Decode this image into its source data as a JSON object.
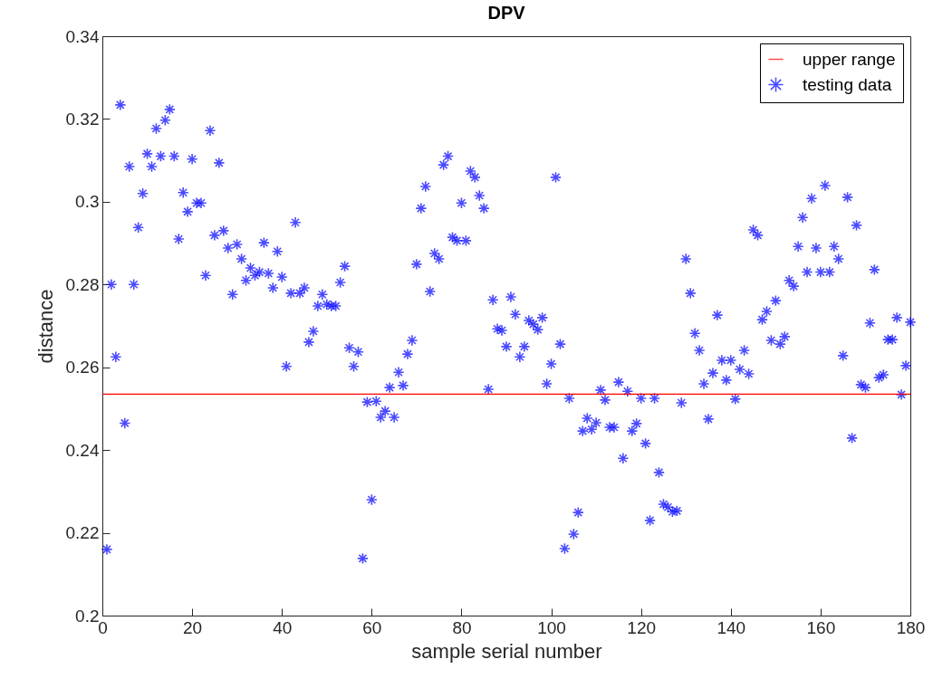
{
  "chart_data": {
    "type": "scatter",
    "title": "DPV",
    "xlabel": "sample serial number",
    "ylabel": "distance",
    "xlim": [
      0,
      180
    ],
    "xticks": [
      0,
      20,
      40,
      60,
      80,
      100,
      120,
      140,
      160,
      180
    ],
    "ylim": [
      0.2,
      0.34
    ],
    "yticks": [
      0.2,
      0.22,
      0.24,
      0.26,
      0.28,
      0.3,
      0.32,
      0.34
    ],
    "grid": false,
    "legend": "top right",
    "marker": "cross",
    "ref_lines": [
      {
        "axis": "y",
        "value": 0.2535,
        "label": "upper range",
        "color": "#ff0000"
      }
    ],
    "x": [
      1,
      2,
      3,
      4,
      5,
      6,
      7,
      8,
      9,
      10,
      11,
      12,
      13,
      14,
      15,
      16,
      17,
      18,
      19,
      20,
      21,
      22,
      23,
      24,
      25,
      26,
      27,
      28,
      29,
      30,
      31,
      32,
      33,
      34,
      35,
      36,
      37,
      38,
      39,
      40,
      41,
      42,
      43,
      44,
      45,
      46,
      47,
      48,
      49,
      50,
      51,
      52,
      53,
      54,
      55,
      56,
      57,
      58,
      59,
      60,
      61,
      62,
      63,
      64,
      65,
      66,
      67,
      68,
      69,
      70,
      71,
      72,
      73,
      74,
      75,
      76,
      77,
      78,
      79,
      80,
      81,
      82,
      83,
      84,
      85,
      86,
      87,
      88,
      89,
      90,
      91,
      92,
      93,
      94,
      95,
      96,
      97,
      98,
      99,
      100,
      101,
      102,
      103,
      104,
      105,
      106,
      107,
      108,
      109,
      110,
      111,
      112,
      113,
      114,
      115,
      116,
      117,
      118,
      119,
      120,
      121,
      122,
      123,
      124,
      125,
      126,
      127,
      128,
      129,
      130,
      131,
      132,
      133,
      134,
      135,
      136,
      137,
      138,
      139,
      140,
      141,
      142,
      143,
      144,
      145,
      146,
      147,
      148,
      149,
      150,
      151,
      152,
      153,
      154,
      155,
      156,
      157,
      158,
      159,
      160,
      161,
      162,
      163,
      164,
      165,
      166,
      167,
      168,
      169,
      170,
      171,
      172,
      173,
      174,
      175,
      176,
      177,
      178,
      179,
      180
    ],
    "series": [
      {
        "name": "testing data",
        "color": "#0000ff",
        "values": [
          0.216,
          0.28,
          0.2625,
          0.3234,
          0.2465,
          0.3085,
          0.28,
          0.2938,
          0.302,
          0.3116,
          0.3085,
          0.3177,
          0.311,
          0.3197,
          0.3223,
          0.311,
          0.291,
          0.3022,
          0.2976,
          0.3103,
          0.2997,
          0.2997,
          0.2822,
          0.3172,
          0.2919,
          0.3094,
          0.293,
          0.2888,
          0.2776,
          0.2897,
          0.2862,
          0.281,
          0.284,
          0.2822,
          0.283,
          0.2901,
          0.2827,
          0.2792,
          0.288,
          0.2818,
          0.2602,
          0.2779,
          0.295,
          0.2779,
          0.2792,
          0.2661,
          0.2687,
          0.2748,
          0.2776,
          0.2752,
          0.2748,
          0.2748,
          0.2805,
          0.2844,
          0.2647,
          0.2602,
          0.2637,
          0.2138,
          0.2516,
          0.228,
          0.2518,
          0.2479,
          0.2494,
          0.2551,
          0.2479,
          0.2588,
          0.2556,
          0.2632,
          0.2665,
          0.2849,
          0.2984,
          0.3037,
          0.2783,
          0.2875,
          0.2862,
          0.3089,
          0.311,
          0.2914,
          0.2906,
          0.2997,
          0.2906,
          0.3074,
          0.3059,
          0.3015,
          0.2984,
          0.2547,
          0.2763,
          0.2693,
          0.2689,
          0.265,
          0.277,
          0.2728,
          0.2625,
          0.265,
          0.2713,
          0.2704,
          0.2691,
          0.272,
          0.256,
          0.2608,
          0.3059,
          0.2656,
          0.2162,
          0.2525,
          0.2197,
          0.2249,
          0.2446,
          0.2477,
          0.245,
          0.2466,
          0.2545,
          0.2521,
          0.2455,
          0.2455,
          0.2564,
          0.238,
          0.2542,
          0.2446,
          0.2464,
          0.2525,
          0.2416,
          0.223,
          0.2525,
          0.2346,
          0.2269,
          0.2262,
          0.2251,
          0.2253,
          0.2514,
          0.2862,
          0.2779,
          0.2682,
          0.2641,
          0.256,
          0.2475,
          0.2586,
          0.2726,
          0.2617,
          0.2569,
          0.2617,
          0.2523,
          0.2595,
          0.2641,
          0.2584,
          0.2932,
          0.2919,
          0.2715,
          0.2735,
          0.2665,
          0.2761,
          0.2656,
          0.2674,
          0.281,
          0.2796,
          0.2892,
          0.2962,
          0.283,
          0.3008,
          0.2888,
          0.283,
          0.3039,
          0.283,
          0.2892,
          0.2862,
          0.2628,
          0.3011,
          0.2429,
          0.2943,
          0.2558,
          0.2551,
          0.2707,
          0.2836,
          0.2575,
          0.2582,
          0.2667,
          0.2667,
          0.272,
          0.2534,
          0.2604,
          0.2709
        ]
      }
    ]
  }
}
